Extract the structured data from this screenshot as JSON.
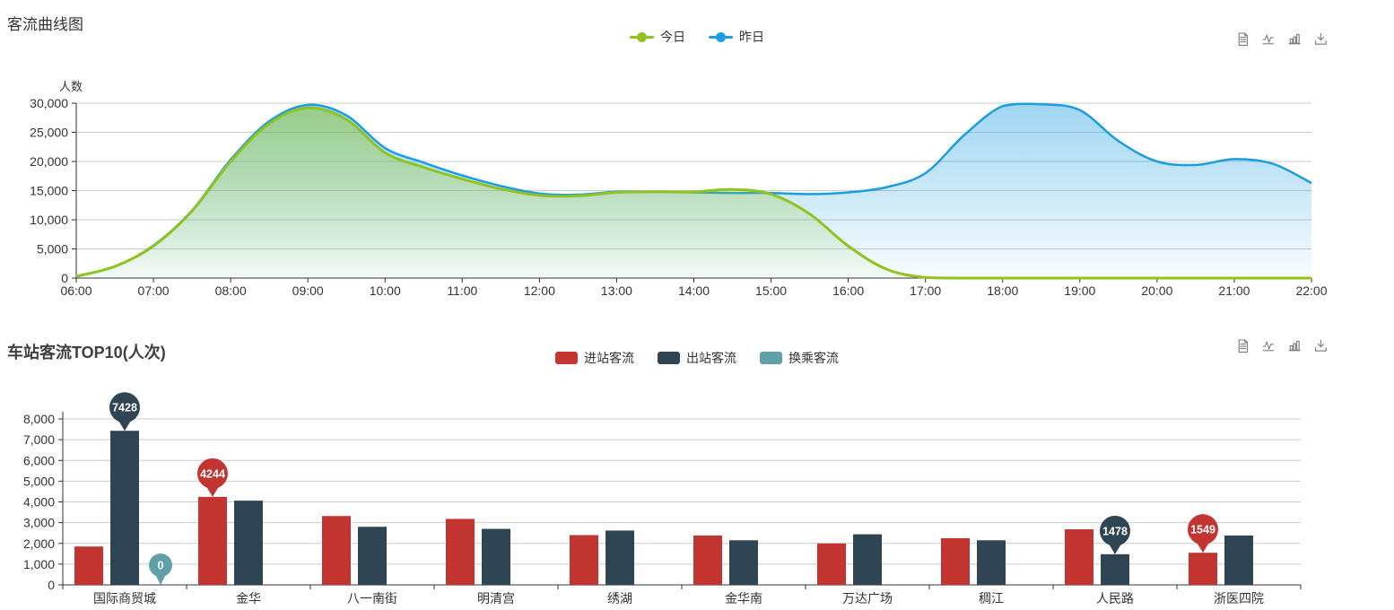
{
  "styles": {
    "background": "#ffffff",
    "text_color": "#333333",
    "axis_color": "#333333",
    "grid_color": "#cccccc",
    "toolbox_icon_color": "#7a7a7a"
  },
  "toolbox": {
    "icons": [
      {
        "name": "data-view-icon"
      },
      {
        "name": "line-type-icon"
      },
      {
        "name": "bar-type-icon"
      },
      {
        "name": "download-icon"
      }
    ]
  },
  "chart_data": [
    {
      "id": "passenger-flow-curve",
      "type": "area",
      "title": "客流曲线图",
      "ylabel": "人数",
      "xlabel": "",
      "legend_position": "top-center",
      "grid": true,
      "ylim": [
        0,
        30000
      ],
      "y_tick_labels": [
        "0",
        "5,000",
        "10,000",
        "15,000",
        "20,000",
        "25,000",
        "30,000"
      ],
      "x_tick_labels": [
        "06:00",
        "07:00",
        "08:00",
        "09:00",
        "10:00",
        "11:00",
        "12:00",
        "13:00",
        "14:00",
        "15:00",
        "16:00",
        "17:00",
        "18:00",
        "19:00",
        "20:00",
        "21:00",
        "22:00"
      ],
      "sample_interval_minutes": 30,
      "series": [
        {
          "name": "今日",
          "color": "#8fc31f",
          "values": [
            300,
            2000,
            5500,
            11500,
            20000,
            26500,
            29200,
            27200,
            21500,
            19000,
            17000,
            15300,
            14200,
            14100,
            14700,
            14800,
            14800,
            15200,
            14400,
            11000,
            5500,
            1500,
            100,
            0,
            0,
            0,
            0,
            0,
            0,
            0,
            0,
            0,
            0
          ]
        },
        {
          "name": "昨日",
          "color": "#1b9de2",
          "values": [
            300,
            2000,
            5600,
            11600,
            20300,
            26900,
            29700,
            27900,
            22300,
            19800,
            17600,
            15800,
            14500,
            14300,
            14800,
            14800,
            14700,
            14600,
            14600,
            14400,
            14700,
            15600,
            18000,
            24500,
            29500,
            29800,
            28800,
            23500,
            20000,
            19400,
            20400,
            19600,
            16300
          ]
        }
      ]
    },
    {
      "id": "station-flow-top10",
      "type": "bar",
      "title": "车站客流TOP10(人次)",
      "legend_position": "top-center",
      "grid": true,
      "ylim": [
        0,
        8000
      ],
      "y_tick_labels": [
        "0",
        "1,000",
        "2,000",
        "3,000",
        "4,000",
        "5,000",
        "6,000",
        "7,000",
        "8,000"
      ],
      "categories": [
        "国际商贸城",
        "金华",
        "八一南街",
        "明清宫",
        "绣湖",
        "金华南",
        "万达广场",
        "稠江",
        "人民路",
        "浙医四院"
      ],
      "series": [
        {
          "name": "进站客流",
          "color": "#c23531",
          "values": [
            1850,
            4244,
            3320,
            3180,
            2400,
            2380,
            2000,
            2250,
            2680,
            1549
          ]
        },
        {
          "name": "出站客流",
          "color": "#2f4554",
          "values": [
            7428,
            4060,
            2800,
            2700,
            2620,
            2150,
            2440,
            2150,
            1478,
            2380
          ]
        },
        {
          "name": "换乘客流",
          "color": "#61a0a8",
          "values": [
            0,
            0,
            0,
            0,
            0,
            0,
            0,
            0,
            0,
            0
          ]
        }
      ],
      "mark_points": [
        {
          "series_index": 1,
          "category_index": 0,
          "label": "7428",
          "kind": "max"
        },
        {
          "series_index": 0,
          "category_index": 1,
          "label": "4244",
          "kind": "max"
        },
        {
          "series_index": 2,
          "category_index": 0,
          "label": "0",
          "kind": "max"
        },
        {
          "series_index": 1,
          "category_index": 8,
          "label": "1478",
          "kind": "min"
        },
        {
          "series_index": 0,
          "category_index": 9,
          "label": "1549",
          "kind": "min"
        }
      ]
    }
  ]
}
